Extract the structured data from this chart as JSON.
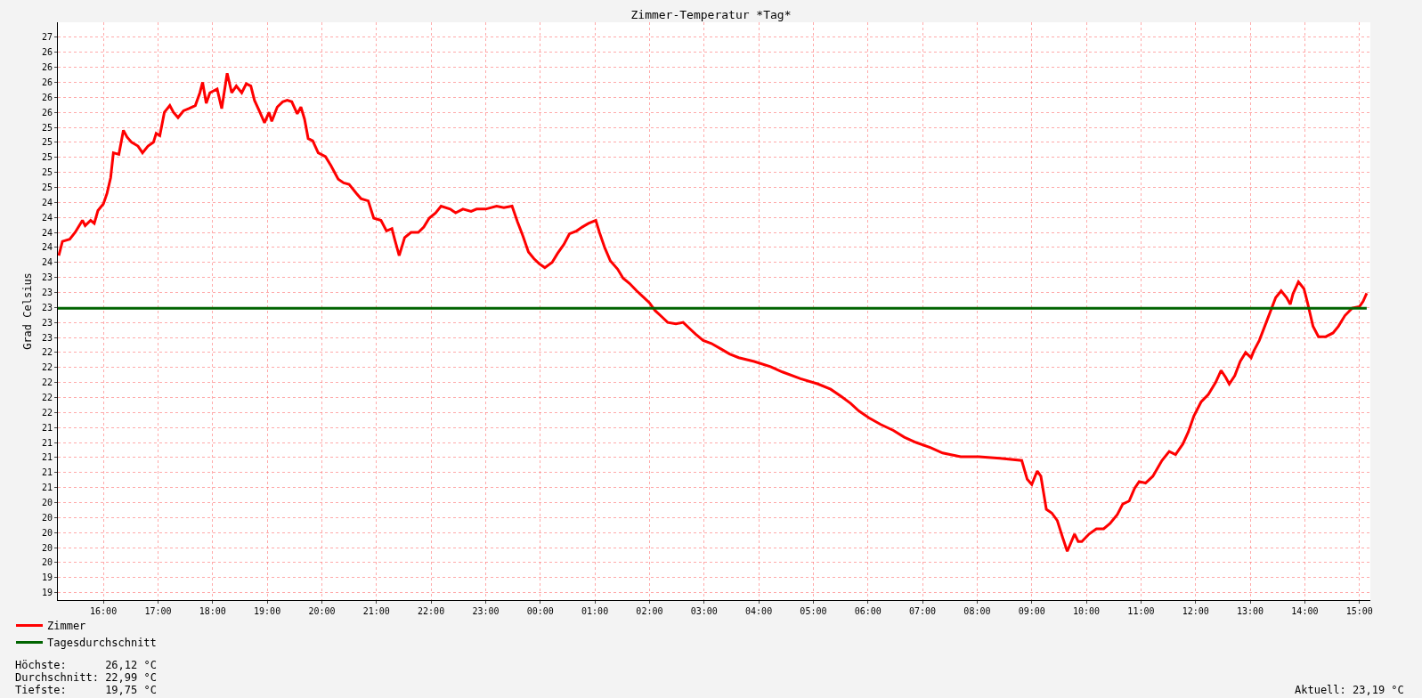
{
  "chart_data": {
    "type": "line",
    "title": "Zimmer-Temperatur *Tag*",
    "ylabel": "Grad Celsius",
    "xlim": [
      "2000-01-01T15:10",
      "2000-01-02T15:12"
    ],
    "xticks": [
      {
        "value": "2000-01-01T16:00",
        "label": "16:00"
      },
      {
        "value": "2000-01-01T17:00",
        "label": "17:00"
      },
      {
        "value": "2000-01-01T18:00",
        "label": "18:00"
      },
      {
        "value": "2000-01-01T19:00",
        "label": "19:00"
      },
      {
        "value": "2000-01-01T20:00",
        "label": "20:00"
      },
      {
        "value": "2000-01-01T21:00",
        "label": "21:00"
      },
      {
        "value": "2000-01-01T22:00",
        "label": "22:00"
      },
      {
        "value": "2000-01-01T23:00",
        "label": "23:00"
      },
      {
        "value": "2000-01-02T00:00",
        "label": "00:00"
      },
      {
        "value": "2000-01-02T01:00",
        "label": "01:00"
      },
      {
        "value": "2000-01-02T02:00",
        "label": "02:00"
      },
      {
        "value": "2000-01-02T03:00",
        "label": "03:00"
      },
      {
        "value": "2000-01-02T04:00",
        "label": "04:00"
      },
      {
        "value": "2000-01-02T05:00",
        "label": "05:00"
      },
      {
        "value": "2000-01-02T06:00",
        "label": "06:00"
      },
      {
        "value": "2000-01-02T07:00",
        "label": "07:00"
      },
      {
        "value": "2000-01-02T08:00",
        "label": "08:00"
      },
      {
        "value": "2000-01-02T09:00",
        "label": "09:00"
      },
      {
        "value": "2000-01-02T10:00",
        "label": "10:00"
      },
      {
        "value": "2000-01-02T11:00",
        "label": "11:00"
      },
      {
        "value": "2000-01-02T12:00",
        "label": "12:00"
      },
      {
        "value": "2000-01-02T13:00",
        "label": "13:00"
      },
      {
        "value": "2000-01-02T14:00",
        "label": "14:00"
      },
      {
        "value": "2000-01-02T15:00",
        "label": "15:00"
      }
    ],
    "ylim": [
      19.1,
      26.8
    ],
    "yticks": [
      {
        "value": 19.2,
        "label": "19"
      },
      {
        "value": 19.4,
        "label": "19"
      },
      {
        "value": 19.6,
        "label": "20"
      },
      {
        "value": 19.8,
        "label": "20"
      },
      {
        "value": 20.0,
        "label": "20"
      },
      {
        "value": 20.2,
        "label": "20"
      },
      {
        "value": 20.4,
        "label": "20"
      },
      {
        "value": 20.6,
        "label": "21"
      },
      {
        "value": 20.8,
        "label": "21"
      },
      {
        "value": 21.0,
        "label": "21"
      },
      {
        "value": 21.2,
        "label": "21"
      },
      {
        "value": 21.4,
        "label": "21"
      },
      {
        "value": 21.6,
        "label": "22"
      },
      {
        "value": 21.8,
        "label": "22"
      },
      {
        "value": 22.0,
        "label": "22"
      },
      {
        "value": 22.2,
        "label": "22"
      },
      {
        "value": 22.4,
        "label": "22"
      },
      {
        "value": 22.6,
        "label": "23"
      },
      {
        "value": 22.8,
        "label": "23"
      },
      {
        "value": 23.0,
        "label": "23"
      },
      {
        "value": 23.2,
        "label": "23"
      },
      {
        "value": 23.4,
        "label": "23"
      },
      {
        "value": 23.6,
        "label": "24"
      },
      {
        "value": 23.8,
        "label": "24"
      },
      {
        "value": 24.0,
        "label": "24"
      },
      {
        "value": 24.2,
        "label": "24"
      },
      {
        "value": 24.4,
        "label": "24"
      },
      {
        "value": 24.6,
        "label": "25"
      },
      {
        "value": 24.8,
        "label": "25"
      },
      {
        "value": 25.0,
        "label": "25"
      },
      {
        "value": 25.2,
        "label": "25"
      },
      {
        "value": 25.4,
        "label": "25"
      },
      {
        "value": 25.6,
        "label": "26"
      },
      {
        "value": 25.8,
        "label": "26"
      },
      {
        "value": 26.0,
        "label": "26"
      },
      {
        "value": 26.2,
        "label": "26"
      },
      {
        "value": 26.4,
        "label": "26"
      },
      {
        "value": 26.6,
        "label": "27"
      }
    ],
    "grid": true,
    "legend": "bottom left",
    "series": [
      {
        "name": "Zimmer",
        "color": "#ff0000",
        "x": [
          "2000-01-01T15:11",
          "2000-01-01T15:15",
          "2000-01-01T15:23",
          "2000-01-01T15:29",
          "2000-01-01T15:37",
          "2000-01-01T15:40",
          "2000-01-01T15:46",
          "2000-01-01T15:50",
          "2000-01-01T15:54",
          "2000-01-01T16:00",
          "2000-01-01T16:04",
          "2000-01-01T16:08",
          "2000-01-01T16:11",
          "2000-01-01T16:17",
          "2000-01-01T16:22",
          "2000-01-01T16:26",
          "2000-01-01T16:31",
          "2000-01-01T16:38",
          "2000-01-01T16:43",
          "2000-01-01T16:49",
          "2000-01-01T16:55",
          "2000-01-01T16:58",
          "2000-01-01T17:02",
          "2000-01-01T17:07",
          "2000-01-01T17:13",
          "2000-01-01T17:17",
          "2000-01-01T17:22",
          "2000-01-01T17:28",
          "2000-01-01T17:34",
          "2000-01-01T17:41",
          "2000-01-01T17:46",
          "2000-01-01T17:49",
          "2000-01-01T17:53",
          "2000-01-01T17:57",
          "2000-01-01T18:05",
          "2000-01-01T18:10",
          "2000-01-01T18:16",
          "2000-01-01T18:21",
          "2000-01-01T18:26",
          "2000-01-01T18:32",
          "2000-01-01T18:37",
          "2000-01-01T18:42",
          "2000-01-01T18:46",
          "2000-01-01T18:52",
          "2000-01-01T18:57",
          "2000-01-01T19:02",
          "2000-01-01T19:05",
          "2000-01-01T19:11",
          "2000-01-01T19:17",
          "2000-01-01T19:22",
          "2000-01-01T19:27",
          "2000-01-01T19:33",
          "2000-01-01T19:37",
          "2000-01-01T19:41",
          "2000-01-01T19:45",
          "2000-01-01T19:50",
          "2000-01-01T19:56",
          "2000-01-01T20:04",
          "2000-01-01T20:10",
          "2000-01-01T20:18",
          "2000-01-01T20:24",
          "2000-01-01T20:30",
          "2000-01-01T20:38",
          "2000-01-01T20:43",
          "2000-01-01T20:51",
          "2000-01-01T20:57",
          "2000-01-01T21:05",
          "2000-01-01T21:11",
          "2000-01-01T21:17",
          "2000-01-01T21:20",
          "2000-01-01T21:25",
          "2000-01-01T21:31",
          "2000-01-01T21:38",
          "2000-01-01T21:46",
          "2000-01-01T21:52",
          "2000-01-01T21:58",
          "2000-01-01T22:05",
          "2000-01-01T22:11",
          "2000-01-01T22:21",
          "2000-01-01T22:27",
          "2000-01-01T22:35",
          "2000-01-01T22:44",
          "2000-01-01T22:50",
          "2000-01-01T23:00",
          "2000-01-01T23:12",
          "2000-01-01T23:20",
          "2000-01-01T23:29",
          "2000-01-01T23:35",
          "2000-01-01T23:41",
          "2000-01-01T23:47",
          "2000-01-01T23:53",
          "2000-01-01T23:59",
          "2000-01-02T00:05",
          "2000-01-02T00:13",
          "2000-01-02T00:19",
          "2000-01-02T00:26",
          "2000-01-02T00:32",
          "2000-01-02T00:40",
          "2000-01-02T00:46",
          "2000-01-02T00:53",
          "2000-01-02T01:01",
          "2000-01-02T01:05",
          "2000-01-02T01:11",
          "2000-01-02T01:17",
          "2000-01-02T01:25",
          "2000-01-02T01:31",
          "2000-01-02T01:38",
          "2000-01-02T01:46",
          "2000-01-02T01:54",
          "2000-01-02T02:00",
          "2000-01-02T02:06",
          "2000-01-02T02:14",
          "2000-01-02T02:20",
          "2000-01-02T02:29",
          "2000-01-02T02:37",
          "2000-01-02T02:43",
          "2000-01-02T02:51",
          "2000-01-02T02:59",
          "2000-01-02T03:08",
          "2000-01-02T03:18",
          "2000-01-02T03:28",
          "2000-01-02T03:38",
          "2000-01-02T03:55",
          "2000-01-02T04:13",
          "2000-01-02T04:26",
          "2000-01-02T04:46",
          "2000-01-02T05:05",
          "2000-01-02T05:19",
          "2000-01-02T05:31",
          "2000-01-02T05:41",
          "2000-01-02T05:50",
          "2000-01-02T06:01",
          "2000-01-02T06:14",
          "2000-01-02T06:28",
          "2000-01-02T06:40",
          "2000-01-02T06:53",
          "2000-01-02T07:09",
          "2000-01-02T07:22",
          "2000-01-02T07:42",
          "2000-01-02T08:02",
          "2000-01-02T08:25",
          "2000-01-02T08:49",
          "2000-01-02T08:55",
          "2000-01-02T09:00",
          "2000-01-02T09:06",
          "2000-01-02T09:10",
          "2000-01-02T09:16",
          "2000-01-02T09:22",
          "2000-01-02T09:28",
          "2000-01-02T09:34",
          "2000-01-02T09:39",
          "2000-01-02T09:47",
          "2000-01-02T09:51",
          "2000-01-02T09:55",
          "2000-01-02T10:03",
          "2000-01-02T10:11",
          "2000-01-02T10:19",
          "2000-01-02T10:26",
          "2000-01-02T10:34",
          "2000-01-02T10:40",
          "2000-01-02T10:47",
          "2000-01-02T10:53",
          "2000-01-02T10:58",
          "2000-01-02T11:05",
          "2000-01-02T11:13",
          "2000-01-02T11:23",
          "2000-01-02T11:31",
          "2000-01-02T11:38",
          "2000-01-02T11:46",
          "2000-01-02T11:52",
          "2000-01-02T11:58",
          "2000-01-02T12:06",
          "2000-01-02T12:14",
          "2000-01-02T12:22",
          "2000-01-02T12:28",
          "2000-01-02T12:33",
          "2000-01-02T12:37",
          "2000-01-02T12:43",
          "2000-01-02T12:49",
          "2000-01-02T12:55",
          "2000-01-02T13:01",
          "2000-01-02T13:04",
          "2000-01-02T13:10",
          "2000-01-02T13:16",
          "2000-01-02T13:22",
          "2000-01-02T13:28",
          "2000-01-02T13:34",
          "2000-01-02T13:40",
          "2000-01-02T13:44",
          "2000-01-02T13:47",
          "2000-01-02T13:53",
          "2000-01-02T13:59",
          "2000-01-02T14:03",
          "2000-01-02T14:09",
          "2000-01-02T14:15",
          "2000-01-02T14:23",
          "2000-01-02T14:31",
          "2000-01-02T14:37",
          "2000-01-02T14:44",
          "2000-01-02T14:52",
          "2000-01-02T15:00",
          "2000-01-02T15:04",
          "2000-01-02T15:08"
        ],
        "values": [
          23.69,
          23.88,
          23.91,
          24.0,
          24.16,
          24.09,
          24.16,
          24.12,
          24.29,
          24.38,
          24.52,
          24.73,
          25.06,
          25.04,
          25.36,
          25.27,
          25.2,
          25.15,
          25.06,
          25.15,
          25.2,
          25.32,
          25.29,
          25.6,
          25.69,
          25.6,
          25.53,
          25.62,
          25.65,
          25.69,
          25.86,
          26.0,
          25.72,
          25.86,
          25.91,
          25.65,
          26.12,
          25.86,
          25.95,
          25.86,
          25.98,
          25.95,
          25.76,
          25.6,
          25.46,
          25.6,
          25.48,
          25.67,
          25.74,
          25.76,
          25.74,
          25.58,
          25.67,
          25.51,
          25.25,
          25.22,
          25.06,
          25.01,
          24.89,
          24.71,
          24.66,
          24.64,
          24.52,
          24.45,
          24.42,
          24.19,
          24.16,
          24.02,
          24.05,
          23.91,
          23.69,
          23.93,
          24.0,
          24.0,
          24.07,
          24.19,
          24.26,
          24.35,
          24.31,
          24.26,
          24.31,
          24.28,
          24.31,
          24.31,
          24.35,
          24.33,
          24.35,
          24.14,
          23.95,
          23.74,
          23.65,
          23.58,
          23.53,
          23.6,
          23.72,
          23.84,
          23.98,
          24.02,
          24.07,
          24.12,
          24.16,
          24.0,
          23.79,
          23.62,
          23.51,
          23.39,
          23.32,
          23.22,
          23.13,
          23.06,
          22.96,
          22.87,
          22.8,
          22.78,
          22.8,
          22.73,
          22.64,
          22.56,
          22.52,
          22.45,
          22.38,
          22.33,
          22.28,
          22.21,
          22.14,
          22.05,
          21.98,
          21.91,
          21.81,
          21.72,
          21.62,
          21.53,
          21.44,
          21.36,
          21.27,
          21.2,
          21.13,
          21.06,
          21.01,
          21.01,
          20.99,
          20.96,
          20.71,
          20.64,
          20.82,
          20.75,
          20.31,
          20.26,
          20.16,
          19.93,
          19.75,
          19.98,
          19.88,
          19.88,
          19.98,
          20.05,
          20.05,
          20.12,
          20.24,
          20.38,
          20.42,
          20.59,
          20.68,
          20.66,
          20.75,
          20.96,
          21.08,
          21.04,
          21.18,
          21.34,
          21.55,
          21.74,
          21.84,
          22.0,
          22.16,
          22.07,
          21.98,
          22.09,
          22.28,
          22.4,
          22.33,
          22.42,
          22.56,
          22.75,
          22.94,
          23.13,
          23.22,
          23.13,
          23.04,
          23.18,
          23.34,
          23.25,
          23.06,
          22.75,
          22.61,
          22.61,
          22.66,
          22.75,
          22.89,
          22.99,
          23.01,
          23.08,
          23.19
        ]
      },
      {
        "name": "Tagesdurchschnitt",
        "color": "#006400",
        "x": [
          "2000-01-01T15:10",
          "2000-01-02T15:08"
        ],
        "values": [
          22.99,
          22.99
        ]
      }
    ],
    "annotations": [
      "Höchste:      26,12 °C",
      "Durchschnitt: 22,99 °C",
      "Tiefste:      19,75 °C",
      "Aktuell: 23,19 °C"
    ]
  }
}
